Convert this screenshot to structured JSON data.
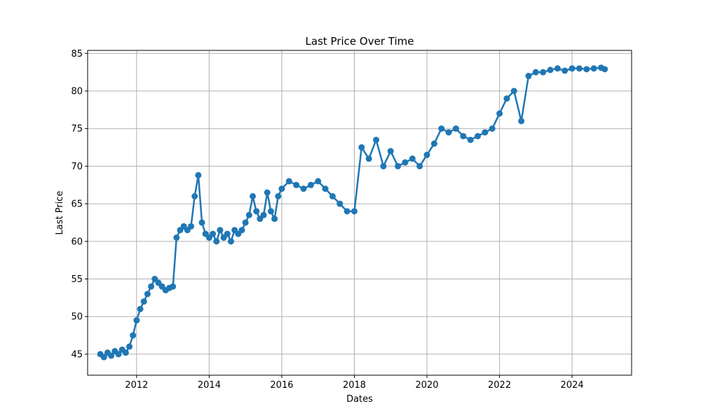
{
  "chart_data": {
    "type": "line",
    "title": "Last Price Over Time",
    "xlabel": "Dates",
    "ylabel": "Last Price",
    "x_ticks": [
      "2012",
      "2014",
      "2016",
      "2018",
      "2020",
      "2022",
      "2024"
    ],
    "y_ticks": [
      "45",
      "50",
      "55",
      "60",
      "65",
      "70",
      "75",
      "80",
      "85"
    ],
    "xlim": [
      2010.65,
      2025.64
    ],
    "ylim": [
      42.2,
      85.4
    ],
    "grid": true,
    "colors": {
      "series": "#1f77b4",
      "grid": "#b0b0b0",
      "axis": "#000000"
    },
    "marker": "circle",
    "series": [
      {
        "x": [
          2011.0,
          2011.1,
          2011.2,
          2011.3,
          2011.4,
          2011.5,
          2011.6,
          2011.7,
          2011.8,
          2011.9,
          2012.0,
          2012.1,
          2012.2,
          2012.3,
          2012.4,
          2012.5,
          2012.6,
          2012.7,
          2012.8,
          2012.9,
          2013.0,
          2013.1,
          2013.2,
          2013.3,
          2013.4,
          2013.5,
          2013.6,
          2013.7,
          2013.8,
          2013.9,
          2014.0,
          2014.1,
          2014.2,
          2014.3,
          2014.4,
          2014.5,
          2014.6,
          2014.7,
          2014.8,
          2014.9,
          2015.0,
          2015.1,
          2015.2,
          2015.3,
          2015.4,
          2015.5,
          2015.6,
          2015.7,
          2015.8,
          2015.9,
          2016.0,
          2016.2,
          2016.4,
          2016.6,
          2016.8,
          2017.0,
          2017.2,
          2017.4,
          2017.6,
          2017.8,
          2018.0,
          2018.2,
          2018.4,
          2018.6,
          2018.8,
          2019.0,
          2019.2,
          2019.4,
          2019.6,
          2019.8,
          2020.0,
          2020.2,
          2020.4,
          2020.6,
          2020.8,
          2021.0,
          2021.2,
          2021.4,
          2021.6,
          2021.8,
          2022.0,
          2022.2,
          2022.4,
          2022.6,
          2022.8,
          2023.0,
          2023.2,
          2023.4,
          2023.6,
          2023.8,
          2024.0,
          2024.2,
          2024.4,
          2024.6,
          2024.8,
          2024.9
        ],
        "y": [
          45.0,
          44.6,
          45.2,
          44.8,
          45.4,
          45.0,
          45.6,
          45.2,
          46.0,
          47.5,
          49.5,
          51.0,
          52.0,
          53.0,
          54.0,
          55.0,
          54.5,
          54.0,
          53.5,
          53.8,
          54.0,
          60.5,
          61.5,
          62.0,
          61.5,
          62.0,
          66.0,
          68.8,
          62.5,
          61.0,
          60.5,
          61.0,
          60.0,
          61.5,
          60.5,
          61.0,
          60.0,
          61.5,
          61.0,
          61.5,
          62.5,
          63.5,
          66.0,
          64.0,
          63.0,
          63.5,
          66.5,
          64.0,
          63.0,
          66.0,
          67.0,
          68.0,
          67.5,
          67.0,
          67.5,
          68.0,
          67.0,
          66.0,
          65.0,
          64.0,
          64.0,
          72.5,
          71.0,
          73.5,
          70.0,
          72.0,
          70.0,
          70.5,
          71.0,
          70.0,
          71.5,
          73.0,
          75.0,
          74.5,
          75.0,
          74.0,
          73.5,
          74.0,
          74.5,
          75.0,
          77.0,
          79.0,
          80.0,
          76.0,
          82.0,
          82.5,
          82.5,
          82.8,
          83.0,
          82.7,
          83.0,
          83.0,
          82.9,
          83.0,
          83.1,
          82.9
        ]
      }
    ]
  }
}
